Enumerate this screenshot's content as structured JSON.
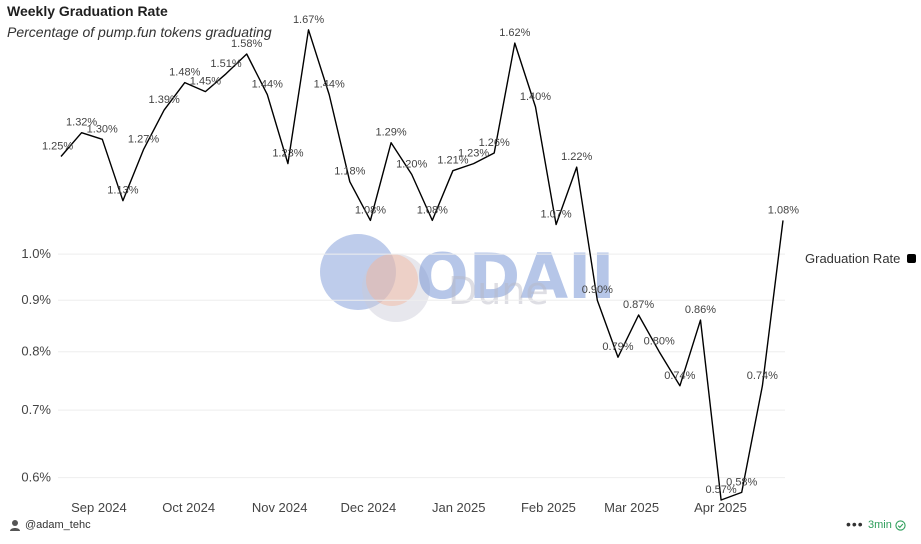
{
  "title": "Weekly Graduation Rate",
  "subtitle": "Percentage of pump.fun tokens graduating",
  "legend_label": "Graduation Rate",
  "author": "@adam_tehc",
  "refresh": "3min",
  "watermark": {
    "brand": "ODAILY",
    "source": "Dune"
  },
  "colors": {
    "line": "#000000",
    "grid": "#eeeeee",
    "badge": "#2e9e5b"
  },
  "chart_data": {
    "type": "line",
    "title": "Weekly Graduation Rate",
    "subtitle": "Percentage of pump.fun tokens graduating",
    "xlabel": "",
    "ylabel": "",
    "yscale": "log",
    "ylim": [
      0.57,
      1.7
    ],
    "y_ticks": [
      0.6,
      0.7,
      0.8,
      0.9,
      1.0
    ],
    "y_tick_labels": [
      "0.6%",
      "0.7%",
      "0.8%",
      "0.9%",
      "1.0%"
    ],
    "x_tick_labels": [
      "Sep 2024",
      "Oct 2024",
      "Nov 2024",
      "Dec 2024",
      "Jan 2025",
      "Feb 2025",
      "Mar 2025",
      "Apr 2025"
    ],
    "x_tick_positions": [
      1.84,
      6.19,
      10.6,
      14.9,
      19.28,
      23.63,
      27.66,
      31.97
    ],
    "grid": true,
    "legend": "right",
    "series": [
      {
        "name": "Graduation Rate",
        "values": [
          1.25,
          1.32,
          1.3,
          1.13,
          1.27,
          1.39,
          1.48,
          1.45,
          1.51,
          1.58,
          1.44,
          1.23,
          1.67,
          1.44,
          1.18,
          1.08,
          1.29,
          1.2,
          1.08,
          1.21,
          1.23,
          1.26,
          1.62,
          1.4,
          1.07,
          1.22,
          0.9,
          0.79,
          0.87,
          0.8,
          0.74,
          0.86,
          0.57,
          0.58,
          0.74,
          1.08
        ],
        "labels": [
          "1.25%",
          "1.32%",
          "1.30%",
          "1.13%",
          "1.27%",
          "1.39%",
          "1.48%",
          "1.45%",
          "1.51%",
          "1.58%",
          "1.44%",
          "1.23%",
          "1.67%",
          "1.44%",
          "1.18%",
          "1.08%",
          "1.29%",
          "1.20%",
          "1.08%",
          "1.21%",
          "1.23%",
          "1.26%",
          "1.62%",
          "1.40%",
          "1.07%",
          "1.22%",
          "0.90%",
          "0.79%",
          "0.87%",
          "0.80%",
          "0.74%",
          "0.86%",
          "0.57%",
          "0.58%",
          "0.74%",
          "1.08%"
        ]
      }
    ]
  }
}
